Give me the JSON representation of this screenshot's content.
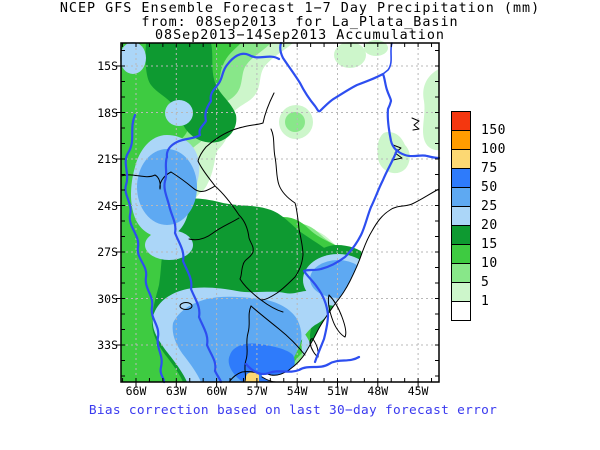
{
  "title": {
    "line1": "NCEP GFS Ensemble Forecast 1−7 Day Precipitation (mm)",
    "line2": "from: 08Sep2013  for La_Plata_Basin",
    "line3": "08Sep2013−14Sep2013 Accumulation"
  },
  "footnote": "Bias correction based on last 30−day forecast error",
  "axes": {
    "lat_labels": [
      "15S",
      "18S",
      "21S",
      "24S",
      "27S",
      "30S",
      "33S"
    ],
    "lon_labels": [
      "66W",
      "63W",
      "60W",
      "57W",
      "54W",
      "51W",
      "48W",
      "45W"
    ]
  },
  "legend": {
    "values": [
      "150",
      "100",
      "75",
      "50",
      "25",
      "20",
      "15",
      "10",
      "5",
      "1"
    ],
    "colors": [
      "#f4370f",
      "#ff9c00",
      "#fcd873",
      "#2e7bfb",
      "#5ea9f2",
      "#abd6f8",
      "#0e9a31",
      "#3ecb41",
      "#88e789",
      "#cdf6cb",
      "#ffffff"
    ]
  },
  "palette": {
    "pale": "#cdf6cb",
    "green5": "#88e789",
    "green10": "#3ecb41",
    "green15": "#0e9a31",
    "blue20": "#abd6f8",
    "blue25": "#5ea9f2",
    "blue50": "#2e7bfb",
    "yellow75": "#fcd873",
    "orange100": "#ff9c00",
    "red150": "#f4370f",
    "ocean": "#ffffff",
    "river": "#2d4ef0",
    "note": "#3a3aef",
    "grid": "#b8b8b8"
  }
}
